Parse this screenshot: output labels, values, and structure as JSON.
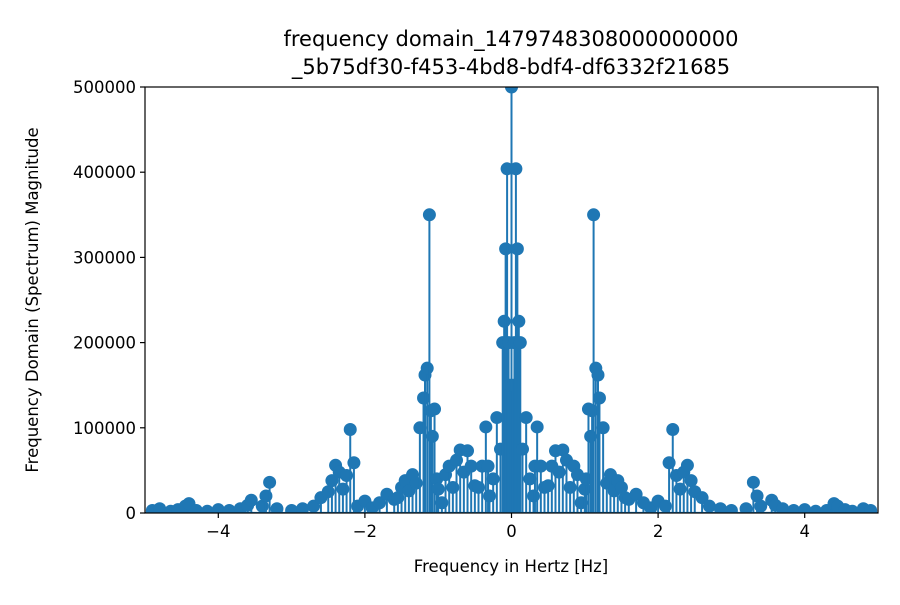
{
  "chart_data": {
    "type": "stem",
    "title": "frequency domain_1479748308000000000\n_5b75df30-f453-4bd8-bdf4-df6332f21685",
    "xlabel": "Frequency in Hertz [Hz]",
    "ylabel": "Frequency Domain (Spectrum) Magnitude",
    "xlim": [
      -5,
      5
    ],
    "ylim": [
      0,
      500000
    ],
    "xticks": [
      -4,
      -2,
      0,
      2,
      4
    ],
    "xtick_labels": [
      "−4",
      "−2",
      "0",
      "2",
      "4"
    ],
    "yticks": [
      0,
      100000,
      200000,
      300000,
      400000,
      500000
    ],
    "ytick_labels": [
      "0",
      "100000",
      "200000",
      "300000",
      "400000",
      "500000"
    ],
    "grid": false,
    "color": "#1f77b4",
    "x": [
      -4.9,
      -4.8,
      -4.65,
      -4.55,
      -4.45,
      -4.4,
      -4.3,
      -4.15,
      -4.0,
      -3.85,
      -3.7,
      -3.6,
      -3.55,
      -3.4,
      -3.35,
      -3.3,
      -3.2,
      -3.0,
      -2.85,
      -2.7,
      -2.6,
      -2.5,
      -2.45,
      -2.4,
      -2.35,
      -2.3,
      -2.25,
      -2.2,
      -2.15,
      -2.1,
      -2.0,
      -1.9,
      -1.8,
      -1.7,
      -1.6,
      -1.55,
      -1.5,
      -1.45,
      -1.4,
      -1.35,
      -1.3,
      -1.25,
      -1.2,
      -1.18,
      -1.15,
      -1.12,
      -1.1,
      -1.08,
      -1.05,
      -1.02,
      -1.0,
      -0.95,
      -0.9,
      -0.85,
      -0.8,
      -0.75,
      -0.7,
      -0.65,
      -0.6,
      -0.55,
      -0.5,
      -0.45,
      -0.4,
      -0.35,
      -0.32,
      -0.3,
      -0.25,
      -0.2,
      -0.15,
      -0.12,
      -0.1,
      -0.08,
      -0.06,
      -0.04,
      -0.02,
      0.0,
      0.02,
      0.04,
      0.06,
      0.08,
      0.1,
      0.12,
      0.15,
      0.2,
      0.25,
      0.3,
      0.32,
      0.35,
      0.4,
      0.45,
      0.5,
      0.55,
      0.6,
      0.65,
      0.7,
      0.75,
      0.8,
      0.85,
      0.9,
      0.95,
      1.0,
      1.02,
      1.05,
      1.08,
      1.1,
      1.12,
      1.15,
      1.18,
      1.2,
      1.25,
      1.3,
      1.35,
      1.4,
      1.45,
      1.5,
      1.55,
      1.6,
      1.7,
      1.8,
      1.9,
      2.0,
      2.1,
      2.15,
      2.2,
      2.25,
      2.3,
      2.35,
      2.4,
      2.45,
      2.5,
      2.6,
      2.7,
      2.85,
      3.0,
      3.2,
      3.3,
      3.35,
      3.4,
      3.55,
      3.6,
      3.7,
      3.85,
      4.0,
      4.15,
      4.3,
      4.4,
      4.45,
      4.55,
      4.65,
      4.8,
      4.9
    ],
    "values": [
      3000,
      5000,
      2000,
      4000,
      8000,
      11000,
      3000,
      2000,
      4000,
      3000,
      5000,
      9000,
      15000,
      8000,
      20000,
      36000,
      5000,
      3000,
      5000,
      8000,
      18000,
      25000,
      38000,
      56000,
      48000,
      28000,
      44000,
      98000,
      59000,
      8000,
      14000,
      6000,
      12000,
      22000,
      16000,
      18000,
      30000,
      38000,
      26000,
      45000,
      35000,
      100000,
      135000,
      162000,
      170000,
      350000,
      120000,
      90000,
      122000,
      40000,
      28000,
      12000,
      45000,
      55000,
      30000,
      62000,
      74000,
      48000,
      73000,
      55000,
      32000,
      30000,
      55000,
      101000,
      55000,
      20000,
      40000,
      112000,
      75000,
      200000,
      225000,
      310000,
      404000,
      200000,
      150000,
      500000,
      150000,
      200000,
      404000,
      310000,
      225000,
      200000,
      75000,
      112000,
      40000,
      20000,
      55000,
      101000,
      55000,
      30000,
      32000,
      55000,
      73000,
      48000,
      74000,
      62000,
      30000,
      55000,
      45000,
      12000,
      28000,
      40000,
      122000,
      90000,
      120000,
      350000,
      170000,
      162000,
      135000,
      100000,
      35000,
      45000,
      26000,
      38000,
      30000,
      18000,
      16000,
      22000,
      12000,
      6000,
      14000,
      8000,
      59000,
      98000,
      44000,
      28000,
      48000,
      56000,
      38000,
      25000,
      18000,
      8000,
      5000,
      3000,
      5000,
      36000,
      20000,
      8000,
      15000,
      9000,
      5000,
      3000,
      4000,
      2000,
      3000,
      11000,
      8000,
      4000,
      2000,
      5000,
      3000
    ]
  }
}
